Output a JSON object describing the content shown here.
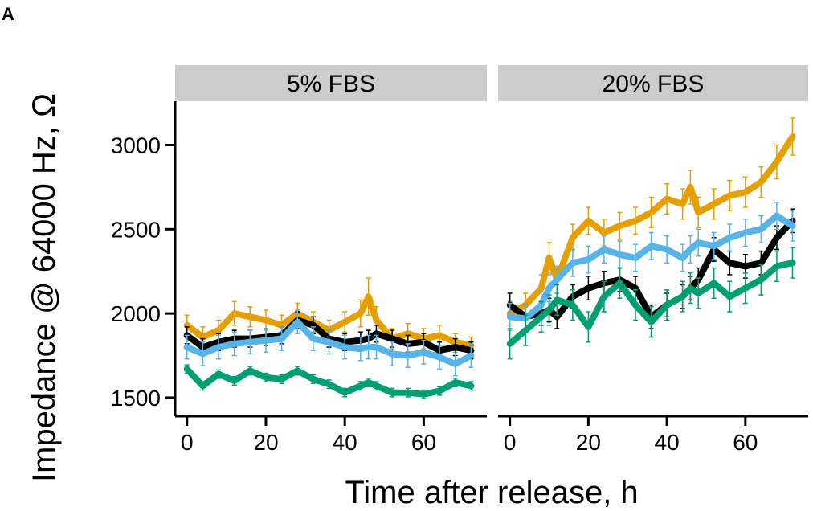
{
  "panel_label": "A",
  "chart_data": {
    "type": "line",
    "xlabel": "Time after release, h",
    "ylabel": "Impedance @ 64000 Hz, Ω",
    "xlim": [
      -3,
      76
    ],
    "ylim": [
      1390,
      3260
    ],
    "xticks": [
      0,
      20,
      40,
      60
    ],
    "yticks": [
      1500,
      2000,
      2500,
      3000
    ],
    "error_bars": true,
    "grid": false,
    "legend": "none",
    "series_colors": [
      "#E69F00",
      "#000000",
      "#56B4E9",
      "#009E73"
    ],
    "panels": [
      {
        "title": "5% FBS",
        "x": [
          0,
          4,
          8,
          12,
          16,
          20,
          24,
          28,
          32,
          36,
          40,
          44,
          46,
          48,
          52,
          56,
          60,
          64,
          68,
          72
        ],
        "series": [
          {
            "color": "#E69F00",
            "values": [
              1930,
              1860,
              1900,
              2000,
              1980,
              1960,
              1930,
              2000,
              1950,
              1900,
              1950,
              2000,
              2100,
              1960,
              1850,
              1880,
              1850,
              1870,
              1830,
              1810
            ],
            "errors": [
              60,
              60,
              60,
              70,
              60,
              60,
              60,
              60,
              60,
              60,
              60,
              80,
              110,
              80,
              60,
              60,
              60,
              60,
              50,
              50
            ]
          },
          {
            "color": "#000000",
            "values": [
              1870,
              1800,
              1830,
              1850,
              1850,
              1860,
              1870,
              1960,
              1930,
              1850,
              1830,
              1840,
              1850,
              1880,
              1850,
              1820,
              1830,
              1780,
              1800,
              1780
            ],
            "errors": [
              50,
              50,
              50,
              50,
              50,
              50,
              50,
              50,
              50,
              50,
              50,
              50,
              50,
              50,
              50,
              50,
              50,
              50,
              50,
              50
            ]
          },
          {
            "color": "#56B4E9",
            "values": [
              1800,
              1760,
              1800,
              1820,
              1830,
              1840,
              1850,
              1950,
              1850,
              1830,
              1800,
              1790,
              1800,
              1800,
              1760,
              1750,
              1770,
              1740,
              1700,
              1750
            ],
            "errors": [
              70,
              70,
              70,
              70,
              70,
              70,
              70,
              70,
              70,
              70,
              70,
              70,
              70,
              70,
              70,
              70,
              70,
              70,
              70,
              70
            ]
          },
          {
            "color": "#009E73",
            "values": [
              1670,
              1570,
              1640,
              1600,
              1660,
              1620,
              1610,
              1660,
              1610,
              1580,
              1530,
              1570,
              1590,
              1570,
              1530,
              1530,
              1520,
              1540,
              1590,
              1570
            ],
            "errors": [
              25,
              25,
              25,
              25,
              25,
              25,
              25,
              25,
              25,
              25,
              25,
              25,
              25,
              25,
              25,
              25,
              25,
              25,
              25,
              25
            ]
          }
        ]
      },
      {
        "title": "20% FBS",
        "x": [
          0,
          4,
          8,
          10,
          12,
          16,
          20,
          24,
          28,
          32,
          36,
          40,
          44,
          46,
          48,
          52,
          56,
          60,
          64,
          68,
          72
        ],
        "series": [
          {
            "color": "#E69F00",
            "values": [
              2000,
              2050,
              2150,
              2330,
              2200,
              2450,
              2550,
              2480,
              2520,
              2550,
              2600,
              2680,
              2650,
              2750,
              2600,
              2650,
              2700,
              2720,
              2780,
              2900,
              3050
            ],
            "errors": [
              70,
              70,
              80,
              90,
              80,
              80,
              80,
              80,
              80,
              80,
              90,
              90,
              90,
              100,
              90,
              90,
              90,
              90,
              90,
              100,
              110
            ]
          },
          {
            "color": "#000000",
            "values": [
              2050,
              1980,
              2000,
              2020,
              1980,
              2100,
              2150,
              2180,
              2200,
              2150,
              1980,
              2050,
              2100,
              2150,
              2200,
              2380,
              2300,
              2280,
              2300,
              2450,
              2550
            ],
            "errors": [
              70,
              70,
              70,
              70,
              70,
              70,
              70,
              70,
              70,
              70,
              70,
              70,
              70,
              70,
              70,
              70,
              70,
              70,
              70,
              70,
              70
            ]
          },
          {
            "color": "#56B4E9",
            "values": [
              1980,
              1970,
              2050,
              2150,
              2200,
              2300,
              2320,
              2380,
              2350,
              2330,
              2400,
              2380,
              2330,
              2380,
              2420,
              2400,
              2450,
              2480,
              2500,
              2580,
              2520
            ],
            "errors": [
              80,
              80,
              80,
              80,
              80,
              80,
              80,
              80,
              80,
              80,
              80,
              80,
              80,
              80,
              80,
              80,
              80,
              80,
              80,
              80,
              90
            ]
          },
          {
            "color": "#009E73",
            "values": [
              1820,
              1900,
              1980,
              2020,
              2080,
              2050,
              1920,
              2100,
              2180,
              2050,
              1950,
              2050,
              2100,
              2150,
              2120,
              2180,
              2100,
              2150,
              2200,
              2280,
              2300
            ],
            "errors": [
              90,
              90,
              90,
              90,
              90,
              90,
              90,
              90,
              90,
              90,
              90,
              90,
              90,
              90,
              90,
              90,
              90,
              90,
              90,
              90,
              90
            ]
          }
        ]
      }
    ]
  }
}
